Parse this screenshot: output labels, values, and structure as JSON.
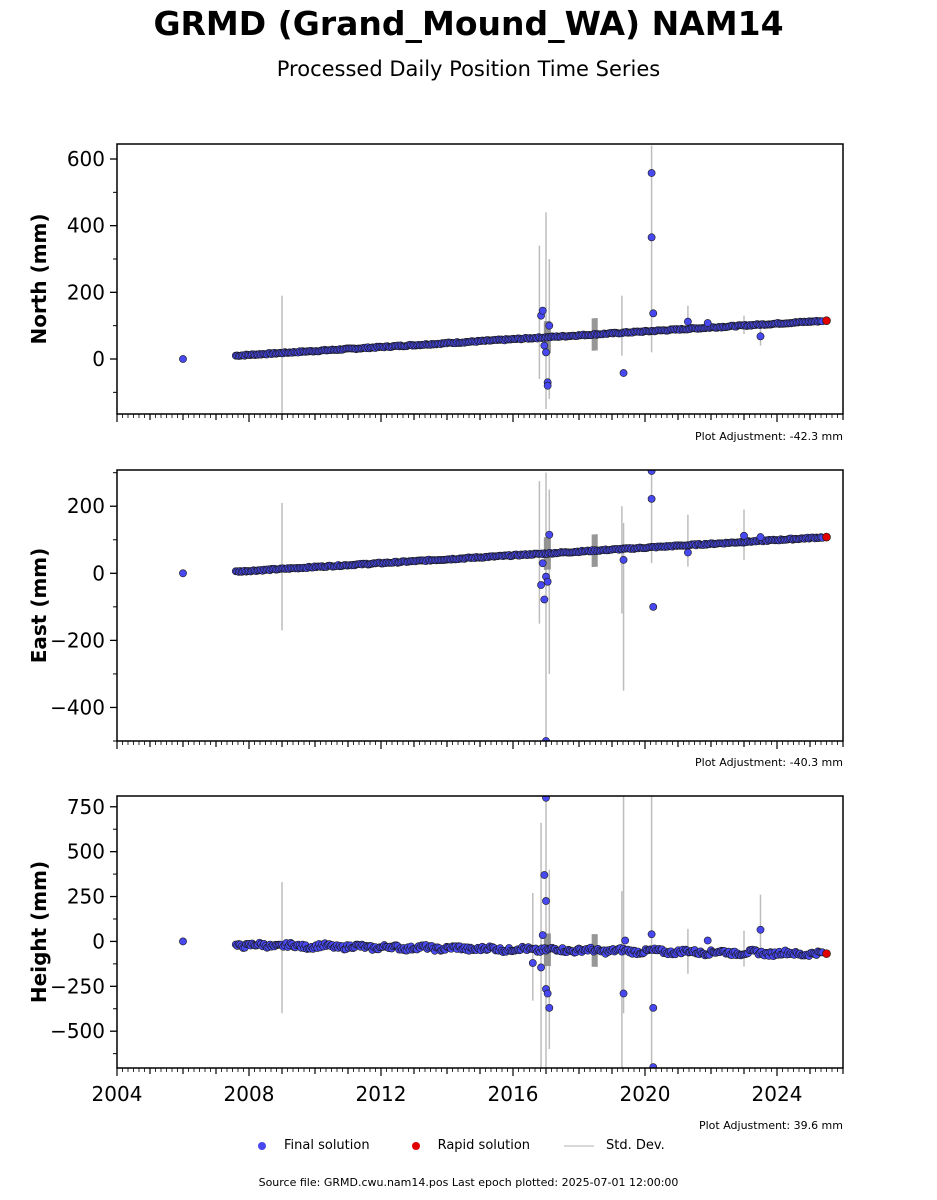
{
  "title": "GRMD (Grand_Mound_WA) NAM14",
  "subtitle": "Processed Daily Position Time Series",
  "legend": {
    "final": "Final solution",
    "rapid": "Rapid solution",
    "stddev": "Std. Dev."
  },
  "colors": {
    "final": "#4848f0",
    "rapid": "#e00000",
    "stddev": "#bdbdbd",
    "edge": "#1a1a1a"
  },
  "footer": "Source file: GRMD.cwu.nam14.pos  Last epoch plotted: 2025-07-01 12:00:00",
  "x_axis": {
    "range": [
      2004.0,
      2026.0
    ],
    "ticks": [
      2004,
      2008,
      2012,
      2016,
      2020,
      2024
    ],
    "tick_labels": [
      "2004",
      "2008",
      "2012",
      "2016",
      "2020",
      "2024"
    ]
  },
  "chart_data": [
    {
      "type": "scatter",
      "ylabel": "North (mm)",
      "ylim": [
        -165,
        645
      ],
      "yticks": [
        0,
        200,
        400,
        600
      ],
      "ytick_labels": [
        "0",
        "200",
        "400",
        "600"
      ],
      "adjustment": "Plot Adjustment: -42.3 mm",
      "trend": [
        [
          2007.6,
          10
        ],
        [
          2025.5,
          115
        ]
      ],
      "wobble": 2,
      "outliers": [
        [
          2006.0,
          0
        ],
        [
          2016.85,
          130
        ],
        [
          2016.9,
          145
        ],
        [
          2016.95,
          40
        ],
        [
          2017.0,
          20
        ],
        [
          2017.05,
          -70
        ],
        [
          2017.05,
          -80
        ],
        [
          2017.1,
          100
        ],
        [
          2019.35,
          -42
        ],
        [
          2020.2,
          365
        ],
        [
          2020.2,
          558
        ],
        [
          2020.25,
          137
        ],
        [
          2021.3,
          112
        ],
        [
          2021.9,
          108
        ],
        [
          2023.5,
          68
        ]
      ],
      "errorbars": [
        [
          2009.0,
          -165,
          190
        ],
        [
          2016.8,
          -60,
          340
        ],
        [
          2017.0,
          -150,
          440
        ],
        [
          2017.1,
          -120,
          300
        ],
        [
          2019.3,
          10,
          190
        ],
        [
          2020.2,
          20,
          640
        ],
        [
          2021.3,
          80,
          160
        ],
        [
          2023.0,
          75,
          130
        ],
        [
          2023.5,
          40,
          100
        ]
      ],
      "rapid": [
        [
          2025.5,
          115
        ]
      ]
    },
    {
      "type": "scatter",
      "ylabel": "East (mm)",
      "ylim": [
        -500,
        308
      ],
      "yticks": [
        -400,
        -200,
        0,
        200
      ],
      "ytick_labels": [
        "−400",
        "−200",
        "0",
        "200"
      ],
      "adjustment": "Plot Adjustment: -40.3 mm",
      "trend": [
        [
          2007.6,
          5
        ],
        [
          2025.5,
          108
        ]
      ],
      "wobble": 2,
      "outliers": [
        [
          2006.0,
          0
        ],
        [
          2016.85,
          -35
        ],
        [
          2016.9,
          30
        ],
        [
          2016.95,
          -78
        ],
        [
          2017.0,
          -10
        ],
        [
          2017.05,
          -25
        ],
        [
          2017.1,
          115
        ],
        [
          2017.0,
          -500
        ],
        [
          2019.35,
          40
        ],
        [
          2020.2,
          305
        ],
        [
          2020.2,
          222
        ],
        [
          2020.25,
          -100
        ],
        [
          2021.3,
          62
        ],
        [
          2023.0,
          112
        ],
        [
          2023.5,
          108
        ]
      ],
      "errorbars": [
        [
          2009.0,
          -170,
          210
        ],
        [
          2016.8,
          -150,
          275
        ],
        [
          2017.0,
          -500,
          300
        ],
        [
          2017.1,
          -300,
          250
        ],
        [
          2019.3,
          -120,
          200
        ],
        [
          2019.35,
          -350,
          150
        ],
        [
          2020.2,
          30,
          308
        ],
        [
          2021.3,
          20,
          175
        ],
        [
          2023.0,
          40,
          190
        ]
      ],
      "rapid": [
        [
          2025.5,
          108
        ]
      ]
    },
    {
      "type": "scatter",
      "ylabel": "Height (mm)",
      "ylim": [
        -705,
        810
      ],
      "yticks": [
        -500,
        -250,
        0,
        250,
        500,
        750
      ],
      "ytick_labels": [
        "−500",
        "−250",
        "0",
        "250",
        "500",
        "750"
      ],
      "adjustment": "Plot Adjustment: 39.6 mm",
      "trend": [
        [
          2007.6,
          -20
        ],
        [
          2025.5,
          -70
        ]
      ],
      "wobble": 12,
      "outliers": [
        [
          2006.0,
          0
        ],
        [
          2016.6,
          -120
        ],
        [
          2016.85,
          -145
        ],
        [
          2016.9,
          35
        ],
        [
          2016.95,
          370
        ],
        [
          2017.0,
          225
        ],
        [
          2017.0,
          -265
        ],
        [
          2017.05,
          -290
        ],
        [
          2017.1,
          -370
        ],
        [
          2017.0,
          800
        ],
        [
          2019.35,
          -290
        ],
        [
          2019.4,
          5
        ],
        [
          2020.2,
          40
        ],
        [
          2020.25,
          -370
        ],
        [
          2020.25,
          -700
        ],
        [
          2021.9,
          5
        ],
        [
          2023.5,
          65
        ]
      ],
      "errorbars": [
        [
          2009.0,
          -400,
          330
        ],
        [
          2016.6,
          -330,
          270
        ],
        [
          2016.85,
          -705,
          660
        ],
        [
          2017.0,
          -705,
          800
        ],
        [
          2017.1,
          -600,
          400
        ],
        [
          2019.3,
          -705,
          280
        ],
        [
          2019.35,
          -400,
          810
        ],
        [
          2020.2,
          -705,
          810
        ],
        [
          2021.3,
          -180,
          70
        ],
        [
          2023.0,
          -140,
          60
        ],
        [
          2023.5,
          -50,
          260
        ]
      ],
      "rapid": [
        [
          2025.5,
          -68
        ]
      ]
    }
  ]
}
